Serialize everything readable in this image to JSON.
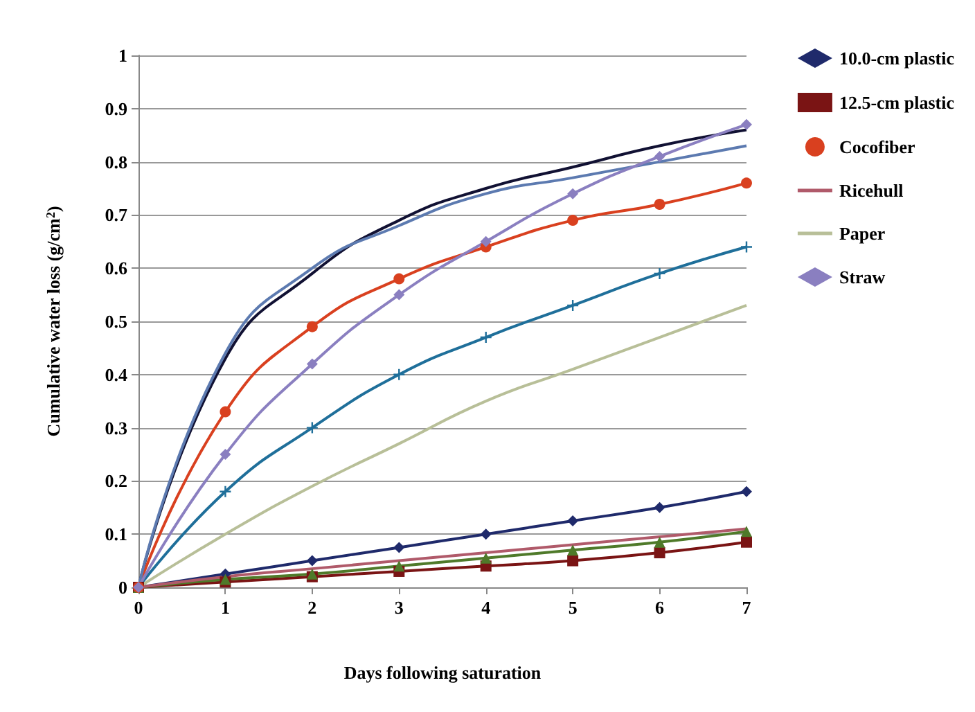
{
  "chart_data": {
    "type": "line",
    "xlabel": "Days following saturation",
    "ylabel": "Cumulative water loss (g/cm$^{2}$)",
    "x": [
      0,
      1,
      2,
      3,
      4,
      5,
      6,
      7
    ],
    "xlim": [
      0,
      7
    ],
    "xticks": [
      0,
      1,
      2,
      3,
      4,
      5,
      6,
      7
    ],
    "ylim": [
      0,
      1
    ],
    "yticks": [
      0,
      0.1,
      0.2,
      0.3,
      0.4,
      0.5,
      0.6,
      0.7,
      0.8,
      0.9,
      1
    ],
    "grid": "y",
    "legend": "right",
    "series": [
      {
        "name": "10.0-cm plastic",
        "color": "#1f2a6b",
        "marker": "diamond",
        "values": [
          0,
          0.025,
          0.05,
          0.075,
          0.1,
          0.125,
          0.15,
          0.18
        ]
      },
      {
        "name": "12.5-cm plastic",
        "color": "#7a1414",
        "marker": "square",
        "values": [
          0,
          0.01,
          0.02,
          0.03,
          0.04,
          0.05,
          0.065,
          0.085
        ]
      },
      {
        "color": "#4f7a2a",
        "marker": "triangle",
        "values": [
          0,
          0.015,
          0.025,
          0.04,
          0.055,
          0.07,
          0.085,
          0.105
        ]
      },
      {
        "color": "#111133",
        "marker": "none",
        "values": [
          0,
          0.43,
          0.59,
          0.69,
          0.75,
          0.79,
          0.83,
          0.86
        ]
      },
      {
        "color": "#1f6f9a",
        "marker": "cross",
        "values": [
          0,
          0.18,
          0.3,
          0.4,
          0.47,
          0.53,
          0.59,
          0.64
        ]
      },
      {
        "name": "Cocofiber",
        "color": "#d9401f",
        "marker": "circle",
        "values": [
          0,
          0.33,
          0.49,
          0.58,
          0.64,
          0.69,
          0.72,
          0.76
        ]
      },
      {
        "color": "#5c7ab0",
        "marker": "none",
        "values": [
          0,
          0.44,
          0.6,
          0.68,
          0.74,
          0.77,
          0.8,
          0.83
        ]
      },
      {
        "name": "Ricehull",
        "color": "#b05a6a",
        "marker": "none",
        "values": [
          0,
          0.02,
          0.035,
          0.05,
          0.065,
          0.08,
          0.095,
          0.11
        ]
      },
      {
        "name": "Paper",
        "color": "#b8bf98",
        "marker": "none",
        "values": [
          0,
          0.1,
          0.19,
          0.27,
          0.35,
          0.41,
          0.47,
          0.53
        ]
      },
      {
        "name": "Straw",
        "color": "#8a7fc0",
        "marker": "diamond",
        "values": [
          0,
          0.25,
          0.42,
          0.55,
          0.65,
          0.74,
          0.81,
          0.87
        ]
      }
    ]
  }
}
